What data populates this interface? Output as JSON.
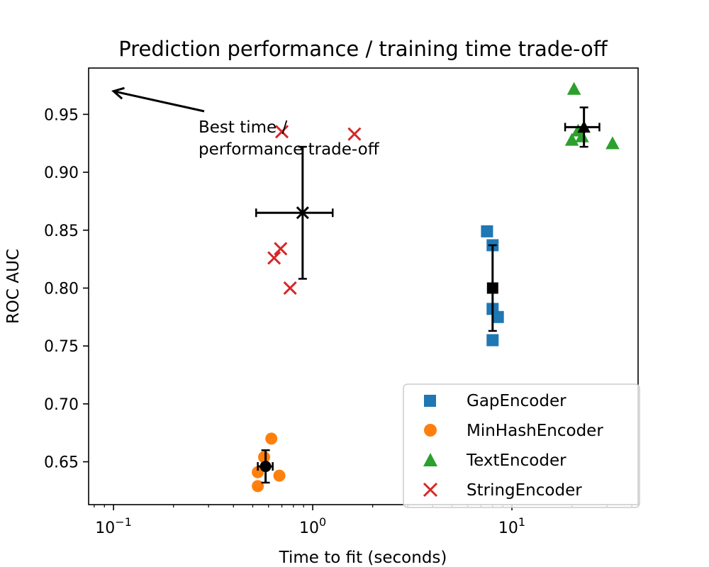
{
  "chart_data": {
    "type": "scatter",
    "title": "Prediction performance / training time trade-off",
    "xlabel": "Time to fit (seconds)",
    "ylabel": "ROC AUC",
    "xscale": "log",
    "xlim": [
      0.075,
      43
    ],
    "ylim": [
      0.613,
      0.99
    ],
    "x_ticks": [
      {
        "value": 0.1,
        "base": "10",
        "exp": "−1"
      },
      {
        "value": 1,
        "base": "10",
        "exp": "0"
      },
      {
        "value": 10,
        "base": "10",
        "exp": "1"
      }
    ],
    "y_ticks": [
      {
        "value": 0.65,
        "label": "0.65"
      },
      {
        "value": 0.7,
        "label": "0.70"
      },
      {
        "value": 0.75,
        "label": "0.75"
      },
      {
        "value": 0.8,
        "label": "0.80"
      },
      {
        "value": 0.85,
        "label": "0.85"
      },
      {
        "value": 0.9,
        "label": "0.90"
      },
      {
        "value": 0.95,
        "label": "0.95"
      }
    ],
    "grid": false,
    "legend_position": "lower-right",
    "series": [
      {
        "name": "GapEncoder",
        "marker": "square",
        "color": "#1f77b4",
        "points": [
          [
            7.5,
            0.849
          ],
          [
            8.0,
            0.837
          ],
          [
            8.0,
            0.782
          ],
          [
            8.5,
            0.775
          ],
          [
            8.0,
            0.755
          ]
        ],
        "mean": {
          "x": 8.0,
          "y": 0.8,
          "xerr": 0.0,
          "yerr": 0.037
        }
      },
      {
        "name": "MinHashEncoder",
        "marker": "circle",
        "color": "#ff7f0e",
        "points": [
          [
            0.62,
            0.67
          ],
          [
            0.57,
            0.654
          ],
          [
            0.53,
            0.641
          ],
          [
            0.68,
            0.638
          ],
          [
            0.53,
            0.629
          ]
        ],
        "mean": {
          "x": 0.58,
          "y": 0.646,
          "xerr": 0.05,
          "yerr": 0.014
        }
      },
      {
        "name": "TextEncoder",
        "marker": "triangle",
        "color": "#2ca02c",
        "points": [
          [
            20.5,
            0.972
          ],
          [
            21.5,
            0.936
          ],
          [
            20.0,
            0.928
          ],
          [
            22.5,
            0.931
          ],
          [
            32.0,
            0.925
          ]
        ],
        "mean": {
          "x": 23.0,
          "y": 0.939,
          "xerr": 4.5,
          "yerr": 0.017
        }
      },
      {
        "name": "StringEncoder",
        "marker": "x",
        "color": "#d62728",
        "points": [
          [
            0.7,
            0.935
          ],
          [
            1.62,
            0.933
          ],
          [
            0.69,
            0.834
          ],
          [
            0.64,
            0.826
          ],
          [
            0.77,
            0.8
          ]
        ],
        "mean": {
          "x": 0.89,
          "y": 0.865,
          "xerr": 0.37,
          "yerr": 0.057
        }
      }
    ],
    "annotation": {
      "text_lines": [
        "Best time /",
        "performance trade-off"
      ],
      "arrow_target": [
        0.1,
        0.97
      ]
    }
  }
}
